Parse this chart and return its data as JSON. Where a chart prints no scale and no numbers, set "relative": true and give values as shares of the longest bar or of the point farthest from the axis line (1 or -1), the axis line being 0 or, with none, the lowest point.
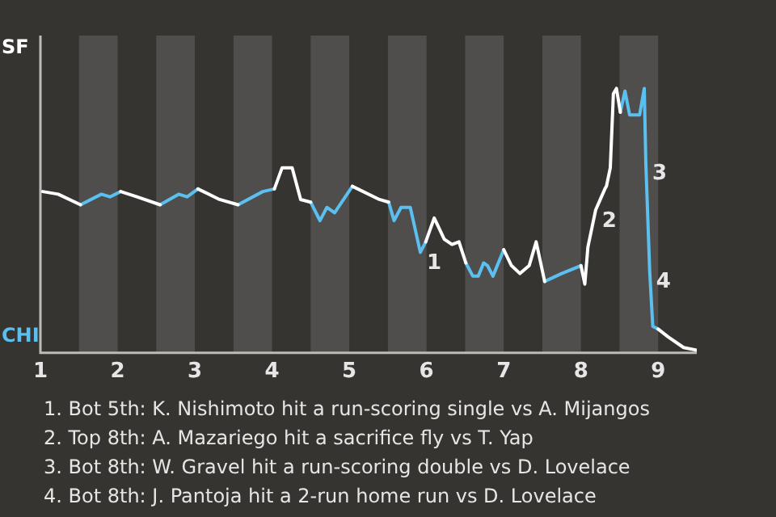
{
  "chart_data": {
    "type": "line",
    "x": [
      1.03,
      1.23,
      1.52,
      1.79,
      1.9,
      2.04,
      2.25,
      2.55,
      2.79,
      2.9,
      3.04,
      3.32,
      3.56,
      3.88,
      4.03,
      4.13,
      4.26,
      4.37,
      4.5,
      4.62,
      4.71,
      4.81,
      5.04,
      5.39,
      5.51,
      5.58,
      5.67,
      5.79,
      5.92,
      5.99,
      6.1,
      6.23,
      6.33,
      6.42,
      6.51,
      6.6,
      6.67,
      6.74,
      6.79,
      6.86,
      7.0,
      7.1,
      7.21,
      7.33,
      7.42,
      7.53,
      7.75,
      8.0,
      8.05,
      8.09,
      8.19,
      8.31,
      8.33,
      8.38,
      8.42,
      8.46,
      8.51,
      8.57,
      8.63,
      8.76,
      8.82,
      8.84,
      8.89,
      8.93,
      9.0,
      9.13,
      9.33,
      9.5
    ],
    "series": [
      {
        "name": "SF",
        "color": "#ffffff",
        "values": [
          0.61,
          0.6,
          0.56,
          null,
          null,
          0.61,
          0.59,
          0.56,
          null,
          null,
          0.62,
          0.58,
          0.56,
          null,
          0.62,
          0.7,
          0.7,
          0.58,
          0.57,
          null,
          null,
          null,
          0.63,
          0.58,
          0.57,
          null,
          null,
          null,
          null,
          0.42,
          0.51,
          0.43,
          0.41,
          0.42,
          0.34,
          null,
          null,
          null,
          null,
          null,
          0.39,
          0.33,
          0.3,
          0.33,
          0.42,
          0.27,
          null,
          0.33,
          0.26,
          0.4,
          0.54,
          0.62,
          0.63,
          0.7,
          0.98,
          1.0,
          0.91,
          null,
          null,
          null,
          null,
          null,
          null,
          null,
          0.09,
          0.06,
          0.02,
          0.01
        ]
      },
      {
        "name": "CHI",
        "color": "#5bc0f0",
        "values": [
          null,
          null,
          0.56,
          0.6,
          0.59,
          0.61,
          null,
          0.56,
          0.6,
          0.59,
          0.62,
          null,
          0.56,
          0.61,
          0.62,
          null,
          null,
          null,
          0.57,
          0.5,
          0.55,
          0.53,
          0.63,
          null,
          0.57,
          0.5,
          0.55,
          0.55,
          0.38,
          0.42,
          null,
          null,
          null,
          null,
          0.34,
          0.29,
          0.29,
          0.34,
          0.33,
          0.29,
          0.39,
          null,
          null,
          null,
          null,
          0.27,
          0.3,
          0.33,
          null,
          null,
          null,
          null,
          null,
          null,
          null,
          null,
          0.91,
          0.99,
          0.9,
          0.9,
          1.0,
          0.72,
          0.31,
          0.1,
          0.09,
          null,
          null,
          null
        ]
      }
    ],
    "relative": true,
    "xlim": [
      1,
      9.5
    ],
    "xticks": [
      1,
      2,
      3,
      4,
      5,
      6,
      7,
      8,
      9
    ],
    "legend": "left",
    "marker": "none",
    "bands": [
      {
        "axis": "x",
        "from": 1.5,
        "to": 2,
        "color": "#4f4e4c"
      },
      {
        "axis": "x",
        "from": 2.5,
        "to": 3,
        "color": "#4f4e4c"
      },
      {
        "axis": "x",
        "from": 3.5,
        "to": 4,
        "color": "#4f4e4c"
      },
      {
        "axis": "x",
        "from": 4.5,
        "to": 5,
        "color": "#4f4e4c"
      },
      {
        "axis": "x",
        "from": 5.5,
        "to": 6,
        "color": "#4f4e4c"
      },
      {
        "axis": "x",
        "from": 6.5,
        "to": 7,
        "color": "#4f4e4c"
      },
      {
        "axis": "x",
        "from": 7.5,
        "to": 8,
        "color": "#4f4e4c"
      },
      {
        "axis": "x",
        "from": 8.5,
        "to": 9,
        "color": "#4f4e4c"
      }
    ],
    "annotations": [
      {
        "text": "1",
        "x": 5.92,
        "y": 0.38
      },
      {
        "text": "2",
        "x": 8.19,
        "y": 0.54
      },
      {
        "text": "3",
        "x": 8.84,
        "y": 0.72
      },
      {
        "text": "4",
        "x": 8.89,
        "y": 0.31
      },
      "1. Bot 5th: K. Nishimoto hit a run-scoring single vs A. Mijangos",
      "2. Top 8th: A. Mazariego hit a sacrifice fly vs T. Yap",
      "3. Bot 8th: W. Gravel hit a run-scoring double vs D. Lovelace",
      "4. Bot 8th: J. Pantoja hit a 2-run home run vs D. Lovelace"
    ]
  }
}
